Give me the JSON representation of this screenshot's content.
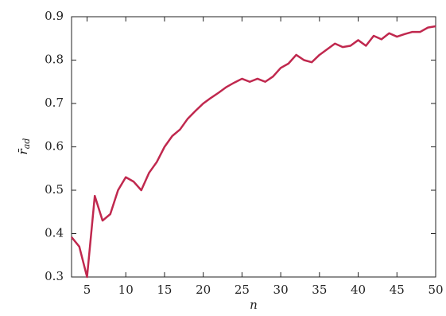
{
  "chart_data": {
    "type": "line",
    "xlabel": "n",
    "ylabel": {
      "symbol": "r̄",
      "subscript": "ad"
    },
    "x": [
      3,
      4,
      5,
      6,
      7,
      8,
      9,
      10,
      11,
      12,
      13,
      14,
      15,
      16,
      17,
      18,
      19,
      20,
      21,
      22,
      23,
      24,
      25,
      26,
      27,
      28,
      29,
      30,
      31,
      32,
      33,
      34,
      35,
      36,
      37,
      38,
      39,
      40,
      41,
      42,
      43,
      44,
      45,
      46,
      47,
      48,
      49,
      50
    ],
    "series": [
      {
        "color": "#c0284e",
        "values": [
          0.392,
          0.37,
          0.3,
          0.487,
          0.43,
          0.445,
          0.5,
          0.53,
          0.52,
          0.5,
          0.54,
          0.565,
          0.6,
          0.625,
          0.64,
          0.665,
          0.683,
          0.7,
          0.713,
          0.725,
          0.738,
          0.748,
          0.757,
          0.75,
          0.757,
          0.75,
          0.762,
          0.782,
          0.792,
          0.812,
          0.8,
          0.795,
          0.812,
          0.825,
          0.838,
          0.83,
          0.833,
          0.846,
          0.833,
          0.856,
          0.848,
          0.862,
          0.854,
          0.86,
          0.865,
          0.865,
          0.875,
          0.878
        ]
      }
    ],
    "xlim": [
      3,
      50
    ],
    "xticks": [
      5,
      10,
      15,
      20,
      25,
      30,
      35,
      40,
      45,
      50
    ],
    "ylim": [
      0.3,
      0.9
    ],
    "yticks": [
      0.3,
      0.4,
      0.5,
      0.6,
      0.7,
      0.8,
      0.9
    ]
  }
}
